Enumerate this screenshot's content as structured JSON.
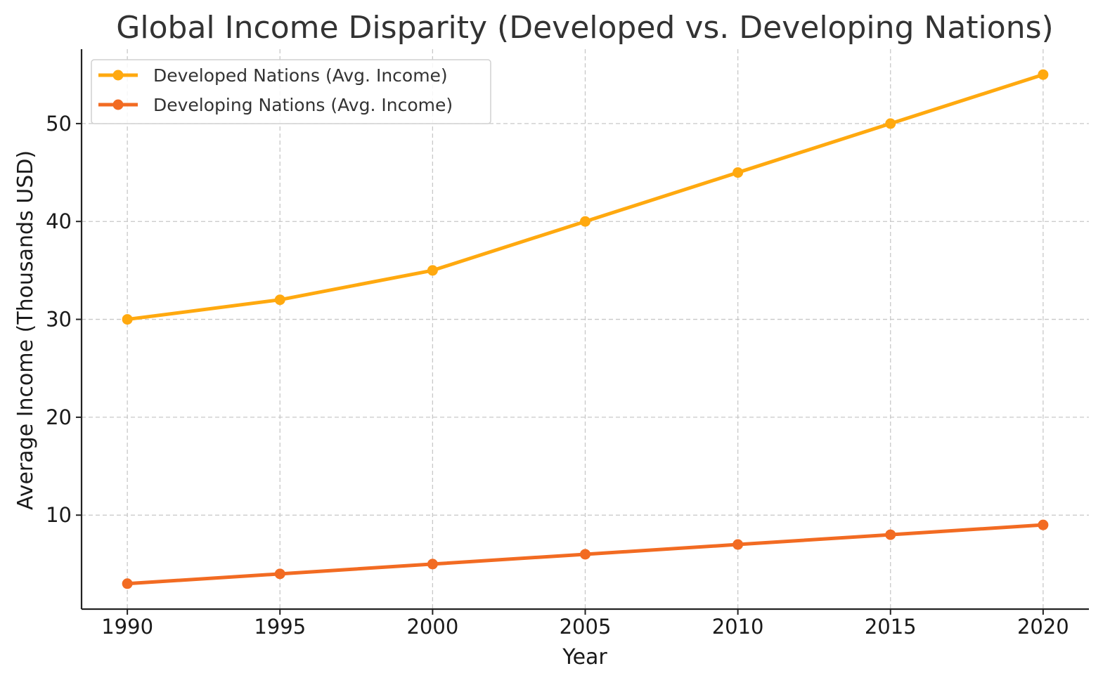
{
  "chart_data": {
    "type": "line",
    "title": "Global Income Disparity (Developed vs. Developing Nations)",
    "xlabel": "Year",
    "ylabel": "Average Income (Thousands USD)",
    "x": [
      1990,
      1995,
      2000,
      2005,
      2010,
      2015,
      2020
    ],
    "x_ticks": [
      "1990",
      "1995",
      "2000",
      "2005",
      "2010",
      "2015",
      "2020"
    ],
    "y_ticks": [
      "10",
      "20",
      "30",
      "40",
      "50"
    ],
    "xlim": [
      1988.5,
      2021.5
    ],
    "ylim": [
      0.4,
      57.6
    ],
    "grid": true,
    "legend_position": "top-left",
    "series": [
      {
        "name": "Developed Nations (Avg. Income)",
        "color": "#FFA90F",
        "values": [
          30,
          32,
          35,
          40,
          45,
          50,
          55
        ]
      },
      {
        "name": "Developing Nations (Avg. Income)",
        "color": "#F26B22",
        "values": [
          3,
          4,
          5,
          6,
          7,
          8,
          9
        ]
      }
    ]
  }
}
